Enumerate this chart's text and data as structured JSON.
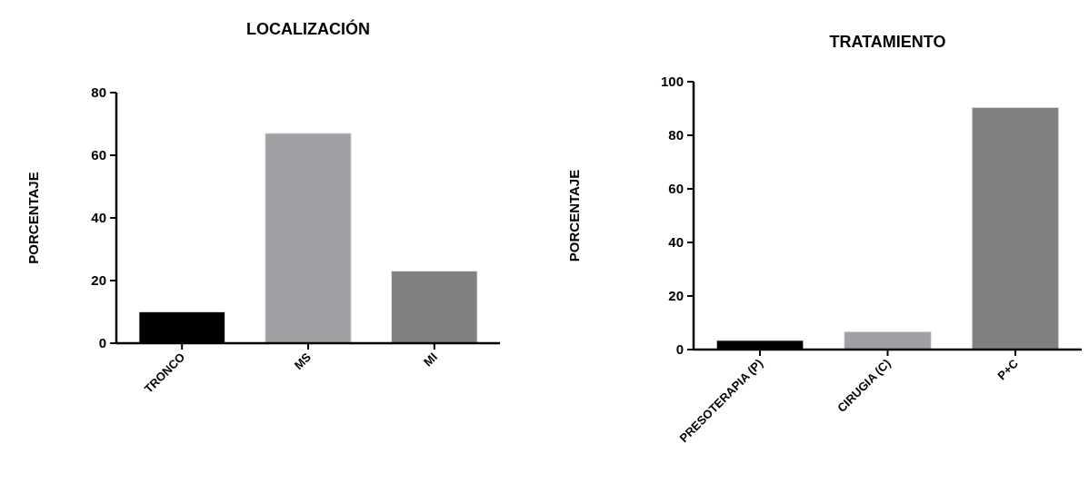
{
  "chart_data": [
    {
      "type": "bar",
      "title": "LOCALIZACIÓN",
      "ylabel": "PORCENTAJE",
      "categories": [
        "TRONCO",
        "MS",
        "MI"
      ],
      "values": [
        10,
        67,
        23
      ],
      "colors": [
        "#000000",
        "#a0a0a4",
        "#808080"
      ],
      "ylim": [
        0,
        80
      ],
      "yticks": [
        0,
        20,
        40,
        60,
        80
      ]
    },
    {
      "type": "bar",
      "title": "TRATAMIENTO",
      "ylabel": "PORCENTAJE",
      "categories": [
        "PRESOTERAPIA (P)",
        "CIRUGIA (C)",
        "P+C"
      ],
      "values": [
        3.4,
        6.7,
        90.4
      ],
      "colors": [
        "#000000",
        "#a0a0a4",
        "#808080"
      ],
      "ylim": [
        0,
        100
      ],
      "yticks": [
        0,
        20,
        40,
        60,
        80,
        100
      ]
    }
  ]
}
